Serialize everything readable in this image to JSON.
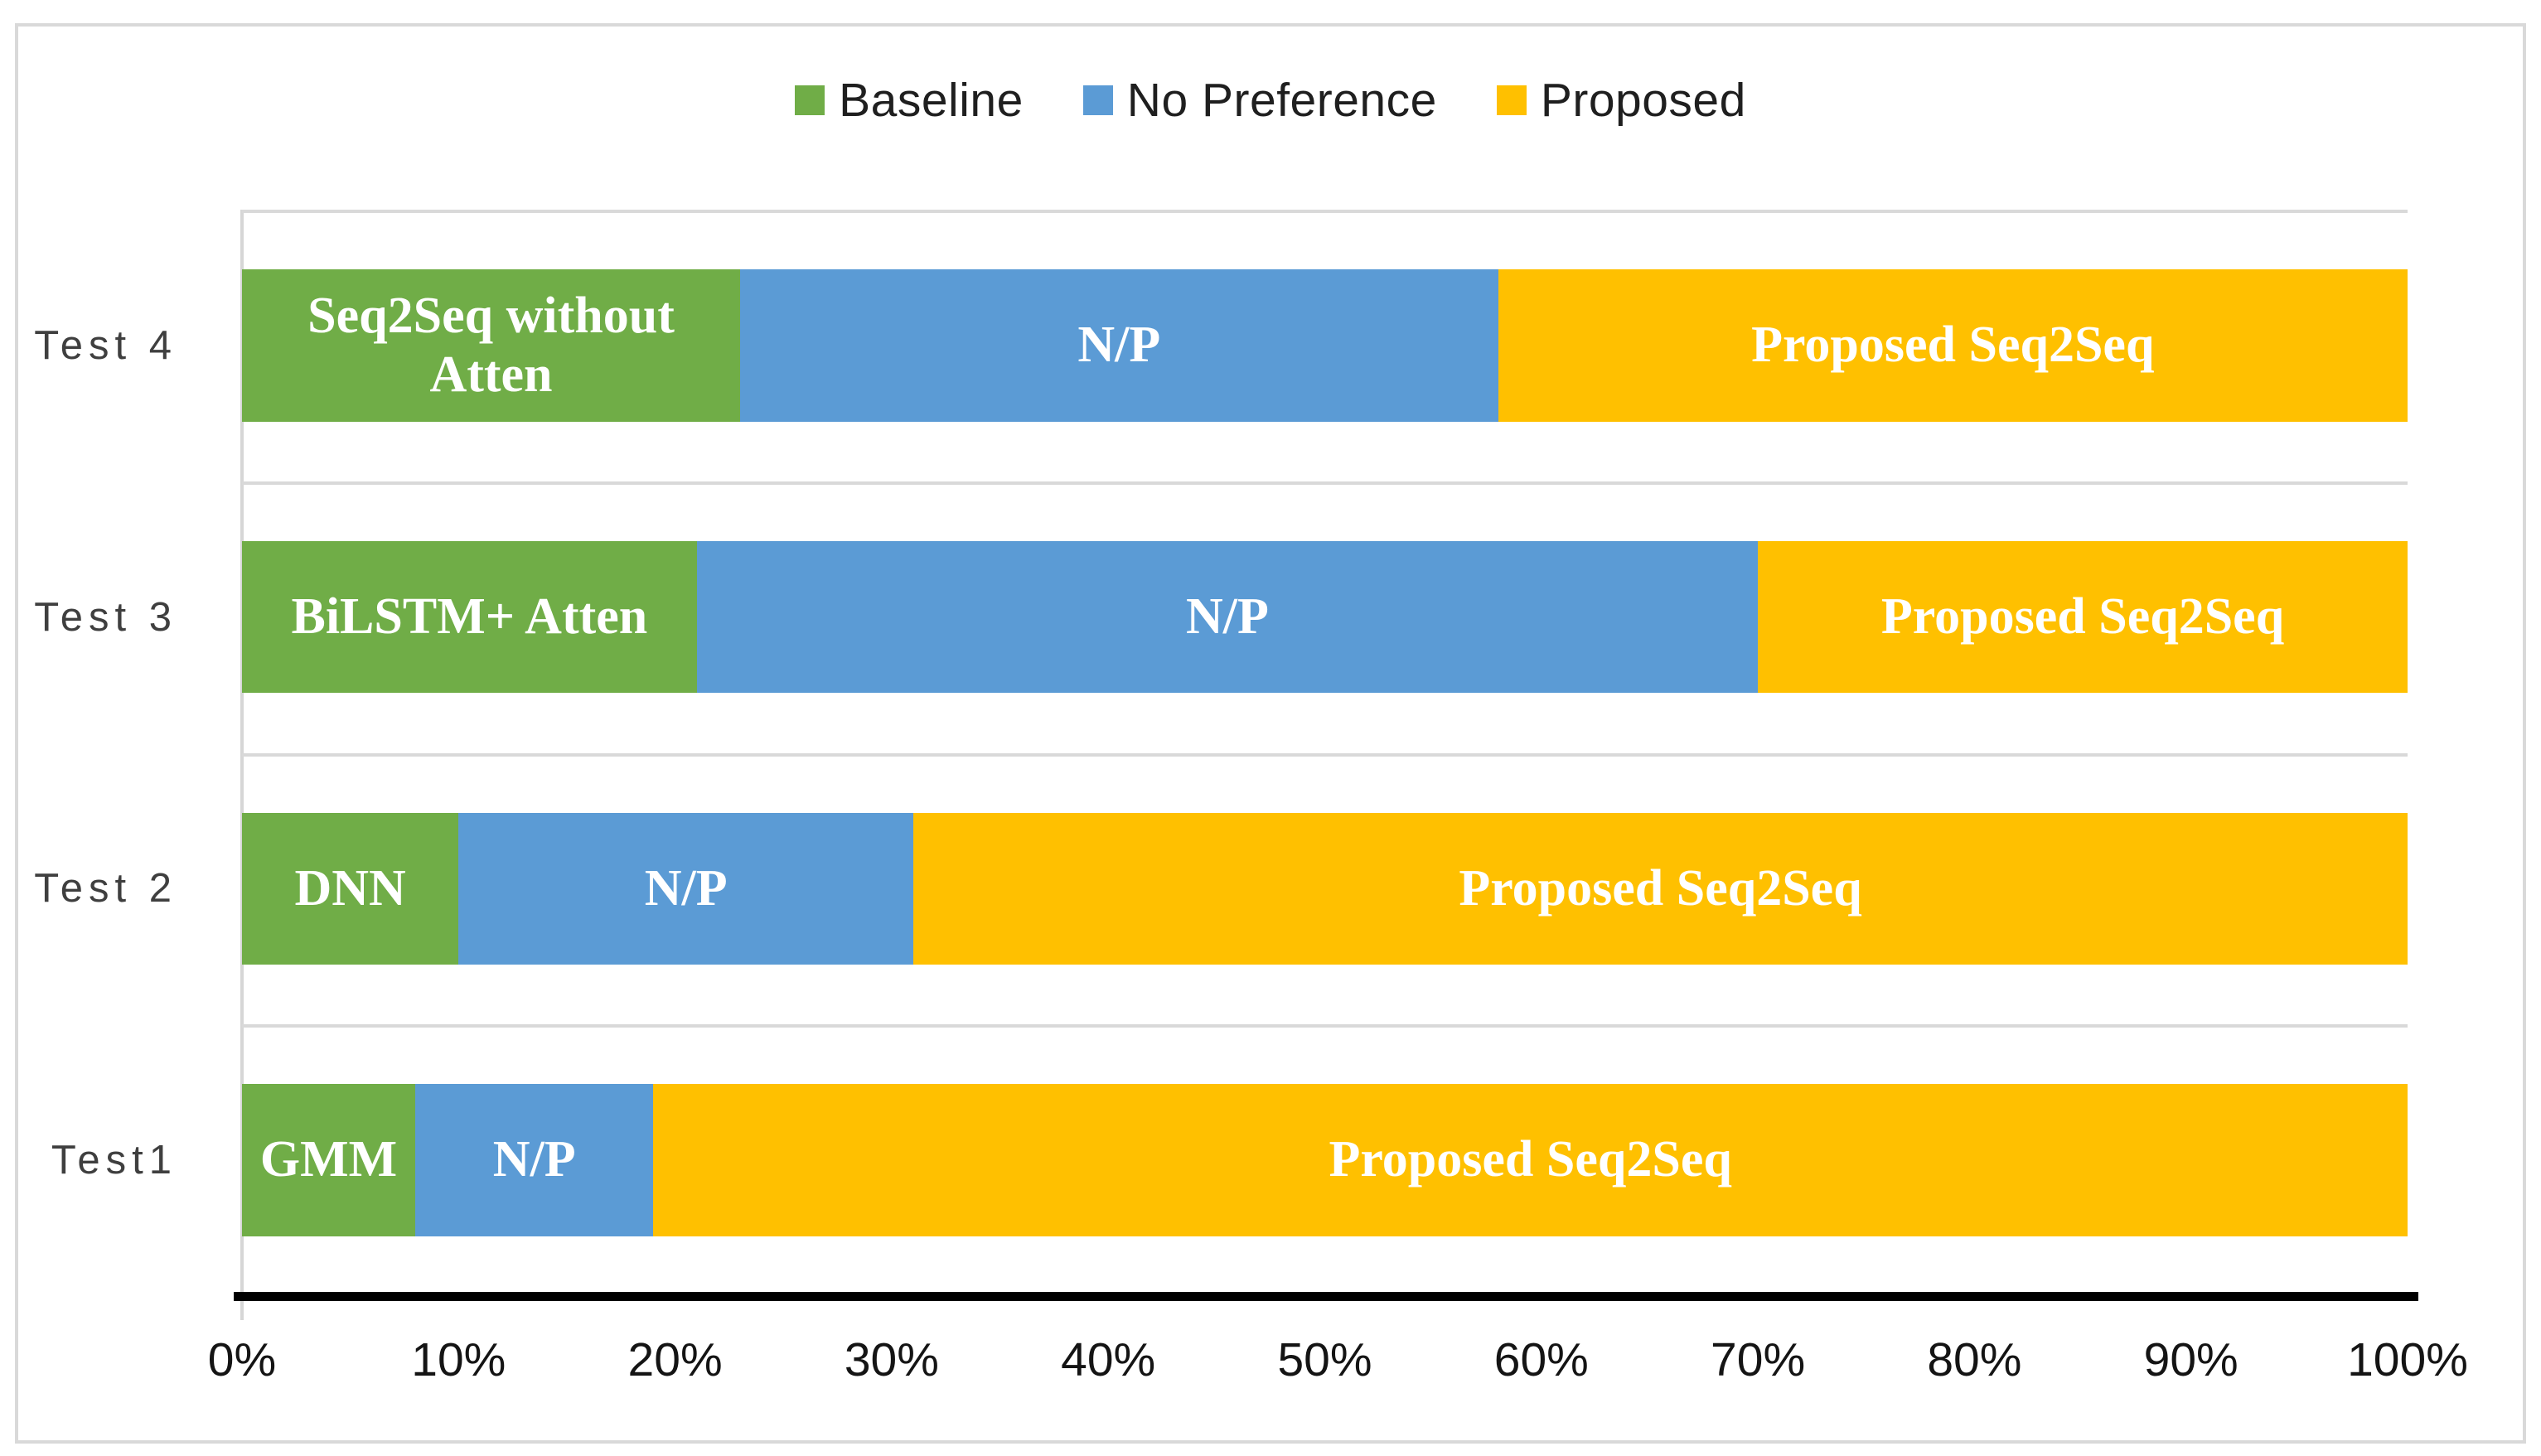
{
  "chart_data": {
    "type": "bar",
    "variant": "horizontal_stacked_100pct",
    "title": "",
    "xlabel": "",
    "ylabel": "",
    "legend": {
      "position": "top-center",
      "items": [
        {
          "label": "Baseline",
          "color": "#70AD47"
        },
        {
          "label": "No Preference",
          "color": "#5B9BD5"
        },
        {
          "label": "Proposed",
          "color": "#FFC000"
        }
      ]
    },
    "categories": [
      "Test 4",
      "Test 3",
      "Test 2",
      "Test1"
    ],
    "series": [
      {
        "name": "Baseline",
        "values": [
          23,
          21,
          10,
          8
        ]
      },
      {
        "name": "No Preference",
        "values": [
          35,
          49,
          21,
          11
        ]
      },
      {
        "name": "Proposed",
        "values": [
          42,
          30,
          69,
          81
        ]
      }
    ],
    "rows": [
      {
        "category": "Test 4",
        "segments": [
          {
            "series": "Baseline",
            "value": 23,
            "label": "Seq2Seq  without\nAtten"
          },
          {
            "series": "No Preference",
            "value": 35,
            "label": "N/P"
          },
          {
            "series": "Proposed",
            "value": 42,
            "label": "Proposed Seq2Seq"
          }
        ]
      },
      {
        "category": "Test 3",
        "segments": [
          {
            "series": "Baseline",
            "value": 21,
            "label": "BiLSTM+ Atten"
          },
          {
            "series": "No Preference",
            "value": 49,
            "label": "N/P"
          },
          {
            "series": "Proposed",
            "value": 30,
            "label": "Proposed Seq2Seq"
          }
        ]
      },
      {
        "category": "Test 2",
        "segments": [
          {
            "series": "Baseline",
            "value": 10,
            "label": "DNN"
          },
          {
            "series": "No Preference",
            "value": 21,
            "label": "N/P"
          },
          {
            "series": "Proposed",
            "value": 69,
            "label": "Proposed Seq2Seq"
          }
        ]
      },
      {
        "category": "Test1",
        "segments": [
          {
            "series": "Baseline",
            "value": 8,
            "label": "GMM"
          },
          {
            "series": "No Preference",
            "value": 11,
            "label": "N/P"
          },
          {
            "series": "Proposed",
            "value": 81,
            "label": "Proposed Seq2Seq"
          }
        ]
      }
    ],
    "x_axis": {
      "min": 0,
      "max": 100,
      "tick_step": 10,
      "tick_labels": [
        "0%",
        "10%",
        "20%",
        "30%",
        "40%",
        "50%",
        "60%",
        "70%",
        "80%",
        "90%",
        "100%"
      ]
    },
    "grid": "horizontal_category_band_lines",
    "styles": {
      "bar_label_color": "#FFFFFF",
      "gridline_color": "#D9D9D9",
      "axis_line_color": "#000000",
      "chart_border_color": "#D9D9D9",
      "tick_label_color": "#141414",
      "category_label_color": "#3F3F3F",
      "legend_label_color": "#1F1F1F"
    }
  }
}
